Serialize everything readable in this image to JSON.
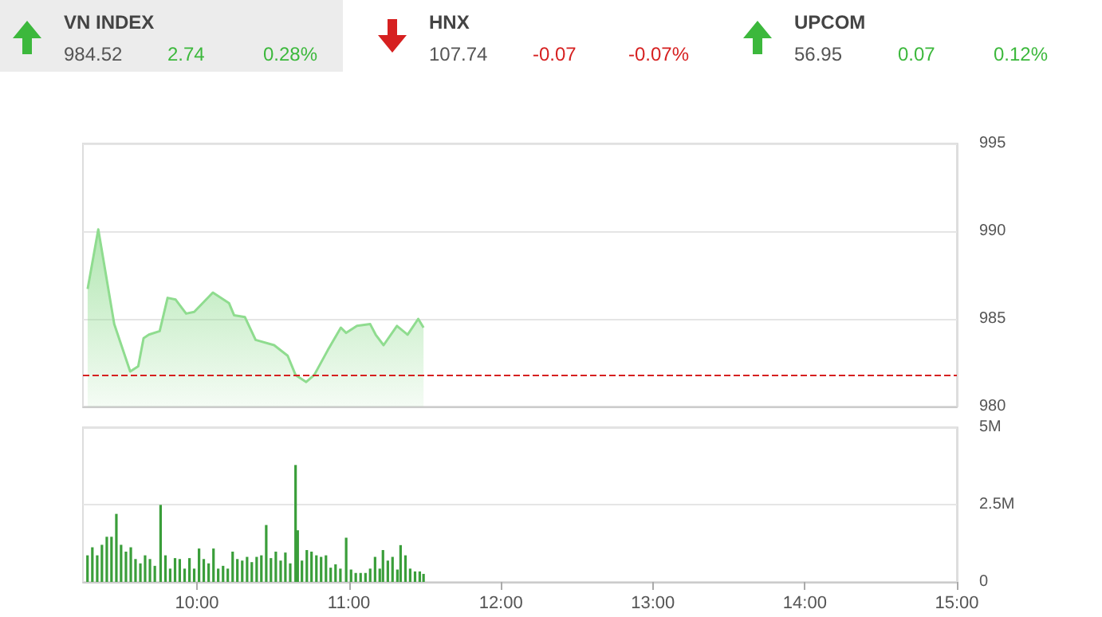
{
  "chart_data": [
    {
      "type": "other",
      "annotations": [
        "VN INDEX",
        "984.52",
        "2.74",
        "0.28%",
        "HNX",
        "107.74",
        "-0.07",
        "-0.07%",
        "UPCOM",
        "56.95",
        "0.07",
        "0.12%"
      ]
    },
    {
      "type": "area",
      "color": "#8fdc8f",
      "x": [
        9.281,
        9.351,
        9.456,
        9.561,
        9.614,
        9.649,
        9.684,
        9.755,
        9.807,
        9.86,
        9.929,
        9.982,
        10.105,
        10.211,
        10.245,
        10.316,
        10.386,
        10.508,
        10.597,
        10.649,
        10.719,
        10.772,
        10.86,
        10.947,
        10.982,
        11.053,
        11.14,
        11.176,
        11.228,
        11.316,
        11.386,
        11.456,
        11.491
      ],
      "values": [
        986.7,
        990.1,
        984.7,
        982.0,
        982.3,
        983.9,
        984.1,
        984.3,
        986.2,
        986.1,
        985.3,
        985.4,
        986.5,
        985.9,
        985.2,
        985.1,
        983.8,
        983.5,
        982.9,
        981.8,
        981.4,
        981.8,
        983.2,
        984.5,
        984.2,
        984.6,
        984.7,
        984.1,
        983.5,
        984.6,
        984.1,
        985.0,
        984.5
      ],
      "xlim": [
        9.25,
        15
      ],
      "ylim": [
        980,
        995
      ],
      "yticks": [
        980,
        985,
        990,
        995
      ],
      "grid": "y",
      "tick_labels": "y",
      "ref_lines": [
        {
          "axis": "y",
          "value": 981.78,
          "color": "#d62020",
          "line_style": "dashed"
        }
      ]
    },
    {
      "type": "bar",
      "color": "#3a9e3a",
      "x": [
        9.28,
        9.312,
        9.344,
        9.375,
        9.407,
        9.438,
        9.47,
        9.501,
        9.533,
        9.565,
        9.596,
        9.628,
        9.659,
        9.691,
        9.723,
        9.761,
        9.793,
        9.824,
        9.856,
        9.887,
        9.919,
        9.951,
        9.982,
        10.014,
        10.045,
        10.077,
        10.109,
        10.14,
        10.172,
        10.203,
        10.235,
        10.266,
        10.298,
        10.33,
        10.361,
        10.393,
        10.424,
        10.456,
        10.487,
        10.519,
        10.551,
        10.582,
        10.614,
        10.649,
        10.663,
        10.691,
        10.723,
        10.754,
        10.786,
        10.817,
        10.849,
        10.88,
        10.912,
        10.944,
        10.982,
        11.014,
        11.045,
        11.077,
        11.109,
        11.14,
        11.172,
        11.203,
        11.224,
        11.256,
        11.287,
        11.319,
        11.34,
        11.372,
        11.403,
        11.435,
        11.466,
        11.491
      ],
      "values": [
        0.86,
        1.12,
        0.86,
        1.2,
        1.46,
        1.46,
        2.2,
        1.2,
        0.98,
        1.12,
        0.74,
        0.6,
        0.86,
        0.74,
        0.52,
        2.49,
        0.86,
        0.43,
        0.77,
        0.74,
        0.43,
        0.77,
        0.43,
        1.08,
        0.74,
        0.6,
        1.08,
        0.43,
        0.52,
        0.43,
        0.98,
        0.74,
        0.69,
        0.81,
        0.64,
        0.81,
        0.86,
        1.84,
        0.77,
        0.98,
        0.69,
        0.95,
        0.6,
        3.78,
        1.67,
        0.69,
        1.03,
        0.98,
        0.86,
        0.81,
        0.86,
        0.46,
        0.57,
        0.43,
        1.43,
        0.4,
        0.29,
        0.29,
        0.29,
        0.43,
        0.81,
        0.43,
        1.03,
        0.69,
        0.81,
        0.4,
        1.19,
        0.86,
        0.43,
        0.34,
        0.34,
        0.26
      ],
      "xlim": [
        9.25,
        15
      ],
      "xticks": [
        {
          "value": 10,
          "label": "10:00"
        },
        {
          "value": 11,
          "label": "11:00"
        },
        {
          "value": 12,
          "label": "12:00"
        },
        {
          "value": 13,
          "label": "13:00"
        },
        {
          "value": 14,
          "label": "14:00"
        },
        {
          "value": 15,
          "label": "15:00"
        }
      ],
      "ylim": [
        0,
        5
      ],
      "yticks": [
        0,
        {
          "value": 2.5,
          "label": "2.5M"
        },
        {
          "value": 5,
          "label": "5M"
        }
      ],
      "grid": "y"
    }
  ]
}
